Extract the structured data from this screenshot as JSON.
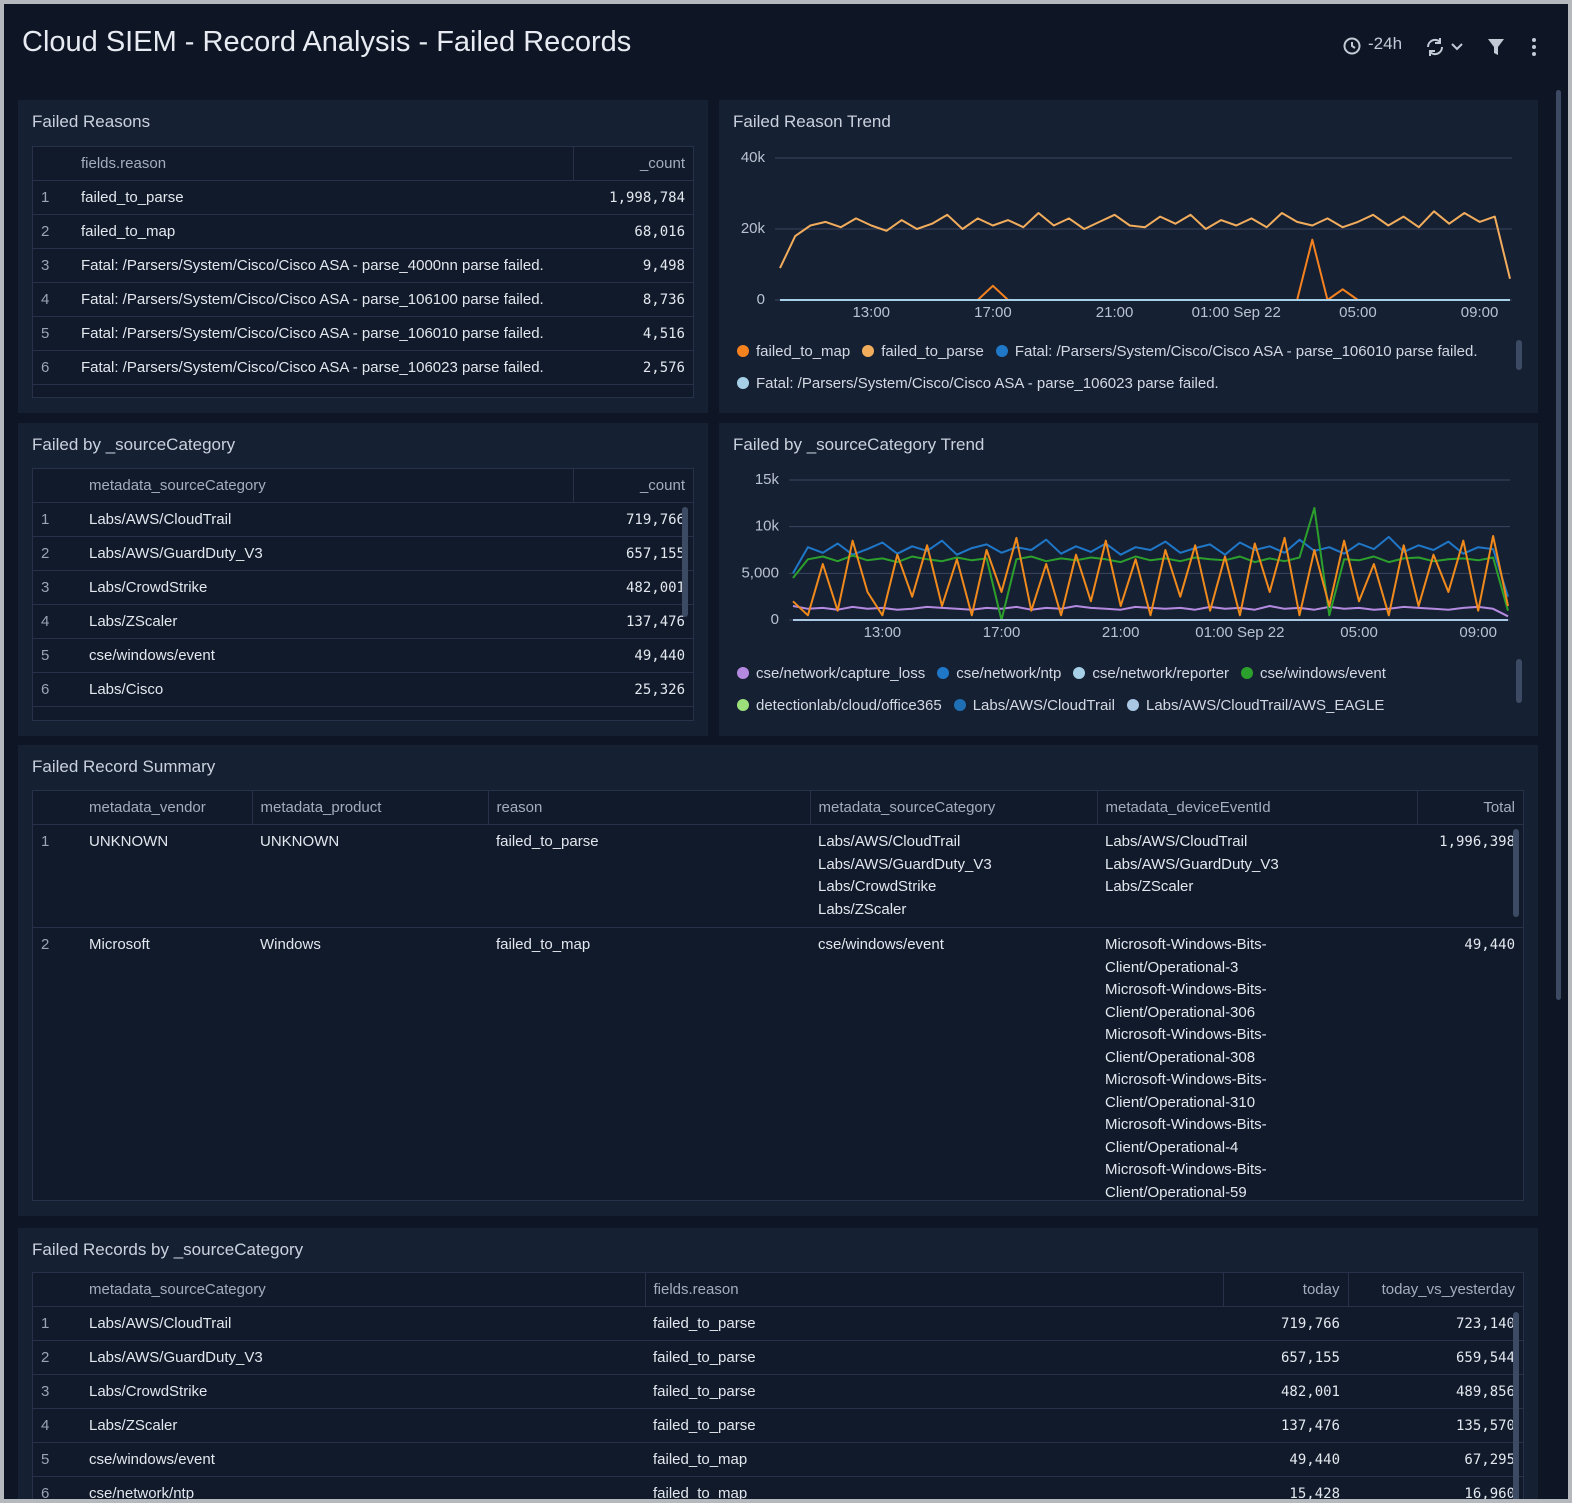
{
  "header": {
    "title": "Cloud SIEM - Record Analysis - Failed Records",
    "time_range": "-24h"
  },
  "chart_data": [
    {
      "type": "line",
      "title": "Failed Reason Trend",
      "categories": [
        null,
        null,
        null,
        null,
        null,
        null,
        "13:00",
        null,
        null,
        null,
        null,
        null,
        null,
        null,
        "17:00",
        null,
        null,
        null,
        null,
        null,
        null,
        null,
        "21:00",
        null,
        null,
        null,
        null,
        null,
        null,
        null,
        "01:00 Sep 22",
        null,
        null,
        null,
        null,
        null,
        null,
        null,
        "05:00",
        null,
        null,
        null,
        null,
        null,
        null,
        null,
        "09:00",
        null,
        null
      ],
      "ylim": [
        0,
        40000
      ],
      "yticks": [
        0,
        {
          "value": 20000,
          "label": "20k"
        },
        {
          "value": 40000,
          "label": "40k"
        }
      ],
      "grid": true,
      "series": [
        {
          "name": "failed_to_map",
          "color": "#f5821f",
          "values": [
            0,
            0,
            0,
            0,
            0,
            0,
            0,
            0,
            0,
            0,
            0,
            0,
            0,
            0,
            4000,
            0,
            0,
            0,
            0,
            0,
            0,
            0,
            0,
            0,
            0,
            0,
            0,
            0,
            0,
            0,
            0,
            0,
            0,
            0,
            0,
            17000,
            0,
            3000,
            0,
            0,
            0,
            0,
            0,
            0,
            0,
            0,
            0,
            0,
            0
          ]
        },
        {
          "name": "failed_to_parse",
          "color": "#f2ad5c",
          "values": [
            9000,
            18000,
            21000,
            22000,
            20500,
            23000,
            21000,
            19500,
            22500,
            20000,
            21500,
            24000,
            20000,
            23000,
            21000,
            22500,
            20500,
            24500,
            21000,
            23000,
            20000,
            22000,
            24000,
            21000,
            20500,
            23500,
            21500,
            24000,
            20000,
            22500,
            21000,
            23000,
            20500,
            24500,
            22000,
            21000,
            23000,
            20500,
            22000,
            24000,
            21000,
            23500,
            20500,
            25000,
            21500,
            24500,
            22000,
            23500,
            6000
          ]
        },
        {
          "name": "Fatal: /Parsers/System/Cisco/Cisco ASA - parse_106010 parse failed.",
          "color": "#1f78c8",
          "values": [
            0,
            0,
            0,
            0,
            0,
            0,
            0,
            0,
            0,
            0,
            0,
            0,
            0,
            0,
            0,
            0,
            0,
            0,
            0,
            0,
            0,
            0,
            0,
            0,
            0,
            0,
            0,
            0,
            0,
            0,
            0,
            0,
            0,
            0,
            0,
            0,
            0,
            0,
            0,
            0,
            0,
            0,
            0,
            0,
            0,
            0,
            0,
            0,
            0
          ]
        },
        {
          "name": "Fatal: /Parsers/System/Cisco/Cisco ASA - parse_106023 parse failed.",
          "color": "#a6cfe8",
          "values": [
            0,
            0,
            0,
            0,
            0,
            0,
            0,
            0,
            0,
            0,
            0,
            0,
            0,
            0,
            0,
            0,
            0,
            0,
            0,
            0,
            0,
            0,
            0,
            0,
            0,
            0,
            0,
            0,
            0,
            0,
            0,
            0,
            0,
            0,
            0,
            0,
            0,
            0,
            0,
            0,
            0,
            0,
            0,
            0,
            0,
            0,
            0,
            0,
            0
          ]
        }
      ]
    },
    {
      "type": "line",
      "title": "Failed by _sourceCategory Trend",
      "categories": [
        null,
        null,
        null,
        null,
        null,
        null,
        "13:00",
        null,
        null,
        null,
        null,
        null,
        null,
        null,
        "17:00",
        null,
        null,
        null,
        null,
        null,
        null,
        null,
        "21:00",
        null,
        null,
        null,
        null,
        null,
        null,
        null,
        "01:00 Sep 22",
        null,
        null,
        null,
        null,
        null,
        null,
        null,
        "05:00",
        null,
        null,
        null,
        null,
        null,
        null,
        null,
        "09:00",
        null,
        null
      ],
      "ylim": [
        0,
        15000
      ],
      "yticks": [
        0,
        {
          "value": 5000,
          "label": "5,000"
        },
        {
          "value": 10000,
          "label": "10k"
        },
        {
          "value": 15000,
          "label": "15k"
        }
      ],
      "grid": true,
      "series": [
        {
          "name": "cse/network/capture_loss",
          "color": "#b48ae0",
          "values": [
            1500,
            1200,
            1300,
            1100,
            1400,
            1200,
            1300,
            1100,
            1200,
            1400,
            1300,
            1200,
            1100,
            1300,
            1200,
            1400,
            1100,
            1300,
            1200,
            1500,
            1300,
            1200,
            1100,
            1400,
            1300,
            1200,
            1300,
            1100,
            1400,
            1200,
            1300,
            1100,
            1500,
            1200,
            1300,
            1100,
            1400,
            1200,
            1300,
            1100,
            1200,
            1400,
            1300,
            1200,
            1100,
            1300,
            1400,
            1200,
            400
          ]
        },
        {
          "name": "cse/network/ntp",
          "color": "#1f77c8",
          "values": [
            5000,
            7800,
            7200,
            8200,
            7000,
            7600,
            8300,
            7100,
            7900,
            7400,
            8500,
            7000,
            7700,
            8100,
            7200,
            7800,
            7500,
            8600,
            7100,
            7900,
            7300,
            8200,
            7000,
            7800,
            7500,
            8400,
            7200,
            7700,
            8100,
            7000,
            8300,
            7500,
            7900,
            7200,
            8600,
            7400,
            7800,
            7100,
            8200,
            7600,
            8900,
            7300,
            8000,
            7500,
            8400,
            7100,
            7800,
            7600,
            2500
          ]
        },
        {
          "name": "cse/network/reporter",
          "color": "#a6cfe8",
          "values": [
            0,
            0,
            0,
            0,
            0,
            0,
            0,
            0,
            0,
            0,
            0,
            0,
            0,
            0,
            0,
            0,
            0,
            0,
            0,
            0,
            0,
            0,
            0,
            0,
            0,
            0,
            0,
            0,
            0,
            0,
            0,
            0,
            0,
            0,
            0,
            0,
            0,
            0,
            0,
            0,
            0,
            0,
            0,
            0,
            0,
            0,
            0,
            0,
            0
          ]
        },
        {
          "name": "cse/windows/event",
          "color": "#2ca02c",
          "values": [
            4500,
            6500,
            6800,
            6300,
            6900,
            6400,
            6600,
            6200,
            6800,
            6500,
            6300,
            6700,
            6400,
            6600,
            0,
            6500,
            6800,
            6300,
            6600,
            6400,
            6700,
            6500,
            6200,
            6800,
            6400,
            6600,
            6300,
            6700,
            6500,
            6400,
            6800,
            6200,
            6600,
            6300,
            6700,
            12000,
            500,
            6500,
            6400,
            6800,
            6200,
            6600,
            6700,
            6300,
            6500,
            6600,
            6400,
            6700,
            1000
          ]
        },
        {
          "name": "detectionlab/cloud/office365",
          "color": "#9be07a",
          "values": [
            0,
            0,
            0,
            0,
            0,
            0,
            0,
            0,
            0,
            0,
            0,
            0,
            0,
            0,
            0,
            0,
            0,
            0,
            0,
            0,
            0,
            0,
            0,
            0,
            0,
            0,
            0,
            0,
            0,
            0,
            0,
            0,
            0,
            0,
            0,
            0,
            0,
            0,
            0,
            0,
            0,
            0,
            0,
            0,
            0,
            0,
            0,
            0,
            0
          ]
        },
        {
          "name": "Labs/AWS/CloudTrail",
          "color": "#1f6fb4",
          "values": [
            0,
            0,
            0,
            0,
            0,
            0,
            0,
            0,
            0,
            0,
            0,
            0,
            0,
            0,
            0,
            0,
            0,
            0,
            0,
            0,
            0,
            0,
            0,
            0,
            0,
            0,
            0,
            0,
            0,
            0,
            0,
            0,
            0,
            0,
            0,
            0,
            0,
            0,
            0,
            0,
            0,
            0,
            0,
            0,
            0,
            0,
            0,
            0,
            0
          ]
        },
        {
          "name": "Labs/AWS/CloudTrail/AWS_EAGLE",
          "color": "#aac8e4",
          "values": [
            0,
            0,
            0,
            0,
            0,
            0,
            0,
            0,
            0,
            0,
            0,
            0,
            0,
            0,
            0,
            0,
            0,
            0,
            0,
            0,
            0,
            0,
            0,
            0,
            0,
            0,
            0,
            0,
            0,
            0,
            0,
            0,
            0,
            0,
            0,
            0,
            0,
            0,
            0,
            0,
            0,
            0,
            0,
            0,
            0,
            0,
            0,
            0,
            0
          ]
        },
        {
          "color": "#f08a1c",
          "values": [
            2000,
            500,
            6000,
            1000,
            8500,
            3000,
            500,
            7000,
            2500,
            8000,
            1500,
            6500,
            500,
            7500,
            3000,
            8800,
            1000,
            6000,
            500,
            7000,
            2000,
            8500,
            1500,
            6500,
            500,
            7500,
            2500,
            8000,
            1000,
            6800,
            500,
            8200,
            3000,
            8800,
            500,
            7500,
            1500,
            8500,
            2000,
            6000,
            500,
            8000,
            1500,
            7000,
            3000,
            8500,
            1000,
            9000,
            1500
          ]
        }
      ]
    }
  ],
  "tables": {
    "failed_reasons": {
      "title": "Failed Reasons",
      "columns": [
        "fields.reason",
        "_count"
      ],
      "rows": [
        [
          "1",
          "failed_to_parse",
          "1,998,784"
        ],
        [
          "2",
          "failed_to_map",
          "68,016"
        ],
        [
          "3",
          "Fatal: /Parsers/System/Cisco/Cisco ASA - parse_4000nn parse failed.",
          "9,498"
        ],
        [
          "4",
          "Fatal: /Parsers/System/Cisco/Cisco ASA - parse_106100 parse failed.",
          "8,736"
        ],
        [
          "5",
          "Fatal: /Parsers/System/Cisco/Cisco ASA - parse_106010 parse failed.",
          "4,516"
        ],
        [
          "6",
          "Fatal: /Parsers/System/Cisco/Cisco ASA - parse_106023 parse failed.",
          "2,576"
        ]
      ]
    },
    "failed_by_source_category": {
      "title": "Failed by _sourceCategory",
      "columns": [
        "metadata_sourceCategory",
        "_count"
      ],
      "rows": [
        [
          "1",
          "Labs/AWS/CloudTrail",
          "719,766"
        ],
        [
          "2",
          "Labs/AWS/GuardDuty_V3",
          "657,155"
        ],
        [
          "3",
          "Labs/CrowdStrike",
          "482,001"
        ],
        [
          "4",
          "Labs/ZScaler",
          "137,476"
        ],
        [
          "5",
          "cse/windows/event",
          "49,440"
        ],
        [
          "6",
          "Labs/Cisco",
          "25,326"
        ]
      ]
    },
    "failed_record_summary": {
      "title": "Failed Record Summary",
      "columns": [
        "metadata_vendor",
        "metadata_product",
        "reason",
        "metadata_sourceCategory",
        "metadata_deviceEventId",
        "Total"
      ],
      "rows": [
        [
          "1",
          "UNKNOWN",
          "UNKNOWN",
          "failed_to_parse",
          [
            "Labs/AWS/CloudTrail",
            "Labs/AWS/GuardDuty_V3",
            "Labs/CrowdStrike",
            "Labs/ZScaler"
          ],
          [
            "Labs/AWS/CloudTrail",
            "Labs/AWS/GuardDuty_V3",
            "Labs/ZScaler"
          ],
          "1,996,398"
        ],
        [
          "2",
          "Microsoft",
          "Windows",
          "failed_to_map",
          [
            "cse/windows/event"
          ],
          [
            "Microsoft-Windows-Bits-",
            "Client/Operational-3",
            "Microsoft-Windows-Bits-",
            "Client/Operational-306",
            "Microsoft-Windows-Bits-",
            "Client/Operational-308",
            "Microsoft-Windows-Bits-",
            "Client/Operational-310",
            "Microsoft-Windows-Bits-",
            "Client/Operational-4",
            "Microsoft-Windows-Bits-",
            "Client/Operational-59"
          ],
          "49,440"
        ]
      ]
    },
    "failed_records_by_source_category": {
      "title": "Failed Records by _sourceCategory",
      "columns": [
        "metadata_sourceCategory",
        "fields.reason",
        "today",
        "today_vs_yesterday"
      ],
      "rows": [
        [
          "1",
          "Labs/AWS/CloudTrail",
          "failed_to_parse",
          "719,766",
          "723,140"
        ],
        [
          "2",
          "Labs/AWS/GuardDuty_V3",
          "failed_to_parse",
          "657,155",
          "659,544"
        ],
        [
          "3",
          "Labs/CrowdStrike",
          "failed_to_parse",
          "482,001",
          "489,856"
        ],
        [
          "4",
          "Labs/ZScaler",
          "failed_to_parse",
          "137,476",
          "135,570"
        ],
        [
          "5",
          "cse/windows/event",
          "failed_to_map",
          "49,440",
          "67,295"
        ],
        [
          "6",
          "cse/network/ntp",
          "failed_to_map",
          "15,428",
          "16,960"
        ]
      ]
    }
  }
}
